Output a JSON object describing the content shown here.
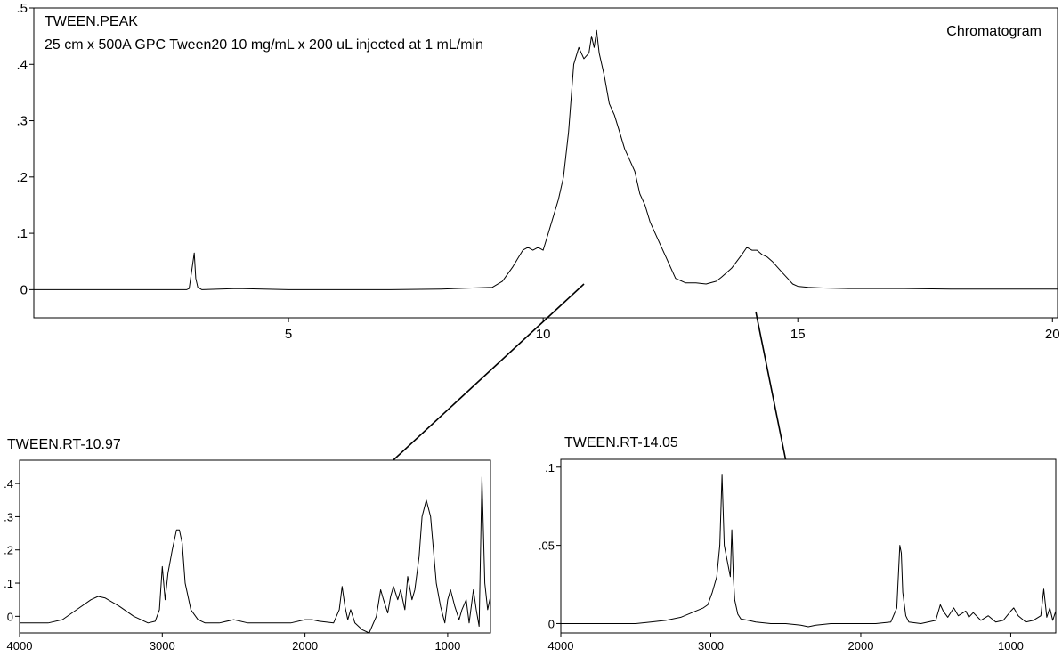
{
  "chart_data": [
    {
      "id": "chromatogram",
      "type": "line",
      "title": "TWEEN.PEAK",
      "subtitle": "25 cm x 500A GPC Tween20 10 mg/mL x 200 uL injected at 1 mL/min",
      "label": "Chromatogram",
      "xlim": [
        0,
        20.1
      ],
      "ylim": [
        -0.05,
        0.5
      ],
      "x_ticks": [
        5,
        10,
        15,
        20
      ],
      "x_tick_labels": [
        "5",
        "10",
        "15",
        "20"
      ],
      "y_ticks": [
        0,
        0.1,
        0.2,
        0.3,
        0.4,
        0.5
      ],
      "y_tick_labels": [
        "0",
        ".1",
        ".2",
        ".3",
        ".4",
        ".5"
      ],
      "grid": false,
      "series": [
        {
          "x": [
            0,
            1,
            2,
            3,
            3.05,
            3.15,
            3.18,
            3.22,
            3.3,
            4,
            5,
            6,
            7,
            8,
            9,
            9.2,
            9.4,
            9.5,
            9.6,
            9.7,
            9.8,
            9.9,
            10,
            10.1,
            10.2,
            10.3,
            10.4,
            10.5,
            10.6,
            10.7,
            10.8,
            10.9,
            10.95,
            11,
            11.05,
            11.1,
            11.2,
            11.3,
            11.4,
            11.5,
            11.6,
            11.7,
            11.8,
            11.9,
            12,
            12.1,
            12.2,
            12.3,
            12.4,
            12.5,
            12.6,
            12.8,
            13,
            13.2,
            13.4,
            13.5,
            13.6,
            13.7,
            13.8,
            13.9,
            14,
            14.1,
            14.2,
            14.3,
            14.4,
            14.5,
            14.6,
            14.7,
            14.8,
            14.9,
            15,
            15.2,
            15.5,
            16,
            17,
            18,
            19,
            20,
            20.1
          ],
          "y": [
            0,
            0,
            0,
            0,
            0.002,
            0.065,
            0.02,
            0.004,
            0,
            0.002,
            0,
            0,
            0,
            0.001,
            0.004,
            0.015,
            0.04,
            0.055,
            0.07,
            0.075,
            0.07,
            0.075,
            0.07,
            0.1,
            0.13,
            0.16,
            0.2,
            0.28,
            0.4,
            0.43,
            0.41,
            0.42,
            0.45,
            0.43,
            0.46,
            0.42,
            0.38,
            0.33,
            0.31,
            0.28,
            0.25,
            0.23,
            0.21,
            0.17,
            0.15,
            0.12,
            0.1,
            0.08,
            0.06,
            0.04,
            0.02,
            0.012,
            0.012,
            0.01,
            0.015,
            0.022,
            0.03,
            0.038,
            0.05,
            0.062,
            0.075,
            0.07,
            0.07,
            0.062,
            0.058,
            0.05,
            0.04,
            0.03,
            0.02,
            0.01,
            0.006,
            0.004,
            0.003,
            0.002,
            0.002,
            0.001,
            0.001,
            0.001,
            0.001
          ]
        }
      ]
    },
    {
      "id": "spectrum-rt-10-97",
      "type": "line",
      "title": "TWEEN.RT-10.97",
      "xlim": [
        4000,
        700
      ],
      "ylim": [
        -0.05,
        0.47
      ],
      "x_ticks": [
        4000,
        3000,
        2000,
        1000
      ],
      "x_tick_labels": [
        "4000",
        "3000",
        "2000",
        "1000"
      ],
      "y_ticks": [
        0,
        0.1,
        0.2,
        0.3,
        0.4
      ],
      "y_tick_labels": [
        "0",
        ".1",
        ".2",
        ".3",
        ".4"
      ],
      "grid": false,
      "series": [
        {
          "x": [
            4000,
            3800,
            3700,
            3600,
            3500,
            3450,
            3400,
            3300,
            3200,
            3100,
            3050,
            3020,
            3000,
            2980,
            2960,
            2930,
            2900,
            2880,
            2860,
            2840,
            2800,
            2750,
            2700,
            2600,
            2500,
            2400,
            2300,
            2200,
            2100,
            2000,
            1950,
            1900,
            1800,
            1760,
            1740,
            1720,
            1700,
            1680,
            1650,
            1600,
            1550,
            1500,
            1470,
            1450,
            1420,
            1400,
            1380,
            1350,
            1330,
            1300,
            1280,
            1250,
            1230,
            1200,
            1180,
            1150,
            1120,
            1100,
            1080,
            1050,
            1020,
            1000,
            980,
            950,
            920,
            900,
            870,
            850,
            820,
            800,
            780,
            760,
            740,
            720,
            700
          ],
          "y": [
            -0.02,
            -0.02,
            -0.01,
            0.02,
            0.05,
            0.06,
            0.055,
            0.03,
            0,
            -0.02,
            -0.015,
            0.02,
            0.15,
            0.05,
            0.13,
            0.2,
            0.26,
            0.26,
            0.22,
            0.1,
            0.02,
            -0.01,
            -0.02,
            -0.02,
            -0.01,
            -0.02,
            -0.02,
            -0.02,
            -0.02,
            -0.01,
            -0.01,
            -0.015,
            -0.02,
            0.02,
            0.09,
            0.03,
            -0.01,
            0.02,
            -0.02,
            -0.04,
            -0.05,
            0,
            0.08,
            0.05,
            0.01,
            0.06,
            0.09,
            0.05,
            0.08,
            0.02,
            0.12,
            0.05,
            0.08,
            0.18,
            0.3,
            0.35,
            0.3,
            0.2,
            0.1,
            0.03,
            -0.02,
            0.05,
            0.08,
            0.03,
            -0.01,
            0.02,
            0.05,
            -0.02,
            0.08,
            0.02,
            -0.03,
            0.42,
            0.1,
            0.02,
            0.06
          ]
        }
      ]
    },
    {
      "id": "spectrum-rt-14-05",
      "type": "line",
      "title": "TWEEN.RT-14.05",
      "xlim": [
        4000,
        700
      ],
      "ylim": [
        -0.006,
        0.105
      ],
      "x_ticks": [
        4000,
        3000,
        2000,
        1000
      ],
      "x_tick_labels": [
        "4000",
        "3000",
        "2000",
        "1000"
      ],
      "y_ticks": [
        0,
        0.05,
        0.1
      ],
      "y_tick_labels": [
        "0",
        ".05",
        ".1"
      ],
      "grid": false,
      "series": [
        {
          "x": [
            4000,
            3900,
            3800,
            3700,
            3600,
            3500,
            3400,
            3300,
            3200,
            3100,
            3050,
            3020,
            2990,
            2960,
            2940,
            2925,
            2910,
            2890,
            2870,
            2860,
            2850,
            2840,
            2820,
            2800,
            2750,
            2700,
            2600,
            2500,
            2400,
            2350,
            2300,
            2200,
            2100,
            2000,
            1900,
            1800,
            1760,
            1740,
            1730,
            1720,
            1700,
            1680,
            1600,
            1500,
            1470,
            1450,
            1420,
            1380,
            1350,
            1300,
            1280,
            1250,
            1200,
            1150,
            1100,
            1050,
            1000,
            980,
            950,
            900,
            850,
            800,
            780,
            760,
            740,
            720,
            700
          ],
          "y": [
            0,
            0,
            0,
            0,
            0,
            0,
            0.001,
            0.002,
            0.004,
            0.008,
            0.01,
            0.012,
            0.02,
            0.03,
            0.05,
            0.095,
            0.05,
            0.04,
            0.03,
            0.06,
            0.03,
            0.015,
            0.006,
            0.003,
            0.002,
            0.001,
            0,
            0,
            -0.001,
            -0.002,
            -0.001,
            0,
            0,
            0,
            0,
            0.001,
            0.01,
            0.05,
            0.045,
            0.02,
            0.005,
            0.001,
            0,
            0.002,
            0.012,
            0.008,
            0.004,
            0.01,
            0.005,
            0.008,
            0.004,
            0.007,
            0.002,
            0.005,
            0.001,
            0.002,
            0.008,
            0.01,
            0.005,
            0.001,
            0.002,
            0.005,
            0.022,
            0.004,
            0.01,
            0.002,
            0.008
          ]
        }
      ]
    }
  ]
}
